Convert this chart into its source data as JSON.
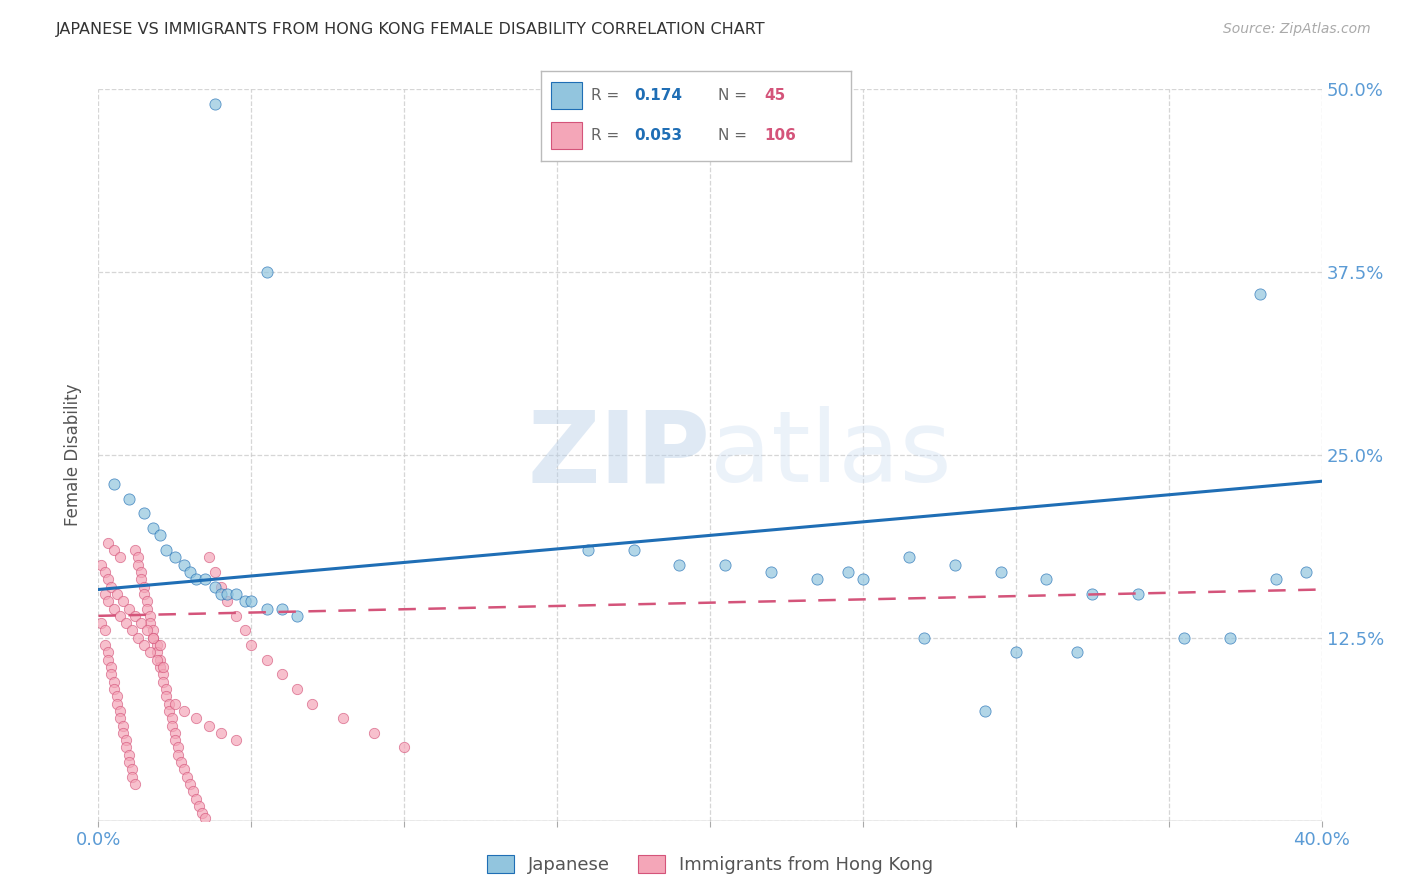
{
  "title": "JAPANESE VS IMMIGRANTS FROM HONG KONG FEMALE DISABILITY CORRELATION CHART",
  "source": "Source: ZipAtlas.com",
  "ylabel": "Female Disability",
  "watermark": "ZIPatlas",
  "xlim": [
    0.0,
    0.4
  ],
  "ylim": [
    0.0,
    0.5
  ],
  "xticks": [
    0.0,
    0.05,
    0.1,
    0.15,
    0.2,
    0.25,
    0.3,
    0.35,
    0.4
  ],
  "yticks": [
    0.0,
    0.125,
    0.25,
    0.375,
    0.5
  ],
  "yticklabels_right": [
    "",
    "12.5%",
    "25.0%",
    "37.5%",
    "50.0%"
  ],
  "legend_label1": "Japanese",
  "legend_label2": "Immigrants from Hong Kong",
  "R1": "0.174",
  "N1": "45",
  "R2": "0.053",
  "N2": "106",
  "color_blue": "#92c5de",
  "color_pink": "#f4a6b8",
  "line_color_blue": "#1f6eb5",
  "line_color_pink": "#d4547a",
  "background_color": "#ffffff",
  "grid_color": "#cccccc",
  "blue_trend_start": 0.158,
  "blue_trend_end": 0.232,
  "pink_trend_start": 0.14,
  "pink_trend_end": 0.158,
  "japanese_x": [
    0.038,
    0.055,
    0.005,
    0.01,
    0.015,
    0.018,
    0.02,
    0.022,
    0.025,
    0.028,
    0.03,
    0.032,
    0.035,
    0.038,
    0.04,
    0.042,
    0.045,
    0.048,
    0.05,
    0.055,
    0.06,
    0.065,
    0.16,
    0.175,
    0.19,
    0.205,
    0.22,
    0.235,
    0.25,
    0.265,
    0.28,
    0.295,
    0.31,
    0.325,
    0.34,
    0.355,
    0.37,
    0.385,
    0.32,
    0.3,
    0.27,
    0.245,
    0.29,
    0.395,
    0.38
  ],
  "japanese_y": [
    0.49,
    0.375,
    0.23,
    0.22,
    0.21,
    0.2,
    0.195,
    0.185,
    0.18,
    0.175,
    0.17,
    0.165,
    0.165,
    0.16,
    0.155,
    0.155,
    0.155,
    0.15,
    0.15,
    0.145,
    0.145,
    0.14,
    0.185,
    0.185,
    0.175,
    0.175,
    0.17,
    0.165,
    0.165,
    0.18,
    0.175,
    0.17,
    0.165,
    0.155,
    0.155,
    0.125,
    0.125,
    0.165,
    0.115,
    0.115,
    0.125,
    0.17,
    0.075,
    0.17,
    0.36
  ],
  "hk_x": [
    0.001,
    0.002,
    0.002,
    0.003,
    0.003,
    0.004,
    0.004,
    0.005,
    0.005,
    0.006,
    0.006,
    0.007,
    0.007,
    0.008,
    0.008,
    0.009,
    0.009,
    0.01,
    0.01,
    0.011,
    0.011,
    0.012,
    0.012,
    0.013,
    0.013,
    0.014,
    0.014,
    0.015,
    0.015,
    0.016,
    0.016,
    0.017,
    0.017,
    0.018,
    0.018,
    0.019,
    0.019,
    0.02,
    0.02,
    0.021,
    0.021,
    0.022,
    0.022,
    0.023,
    0.023,
    0.024,
    0.024,
    0.025,
    0.025,
    0.026,
    0.026,
    0.027,
    0.028,
    0.029,
    0.03,
    0.031,
    0.032,
    0.033,
    0.034,
    0.035,
    0.036,
    0.038,
    0.04,
    0.042,
    0.045,
    0.048,
    0.05,
    0.055,
    0.06,
    0.065,
    0.07,
    0.08,
    0.09,
    0.1,
    0.002,
    0.003,
    0.005,
    0.007,
    0.009,
    0.011,
    0.013,
    0.015,
    0.017,
    0.019,
    0.021,
    0.003,
    0.005,
    0.007,
    0.001,
    0.002,
    0.003,
    0.004,
    0.006,
    0.008,
    0.01,
    0.012,
    0.014,
    0.016,
    0.018,
    0.02,
    0.025,
    0.028,
    0.032,
    0.036,
    0.04,
    0.045
  ],
  "hk_y": [
    0.135,
    0.13,
    0.12,
    0.115,
    0.11,
    0.105,
    0.1,
    0.095,
    0.09,
    0.085,
    0.08,
    0.075,
    0.07,
    0.065,
    0.06,
    0.055,
    0.05,
    0.045,
    0.04,
    0.035,
    0.03,
    0.025,
    0.185,
    0.18,
    0.175,
    0.17,
    0.165,
    0.16,
    0.155,
    0.15,
    0.145,
    0.14,
    0.135,
    0.13,
    0.125,
    0.12,
    0.115,
    0.11,
    0.105,
    0.1,
    0.095,
    0.09,
    0.085,
    0.08,
    0.075,
    0.07,
    0.065,
    0.06,
    0.055,
    0.05,
    0.045,
    0.04,
    0.035,
    0.03,
    0.025,
    0.02,
    0.015,
    0.01,
    0.005,
    0.002,
    0.18,
    0.17,
    0.16,
    0.15,
    0.14,
    0.13,
    0.12,
    0.11,
    0.1,
    0.09,
    0.08,
    0.07,
    0.06,
    0.05,
    0.155,
    0.15,
    0.145,
    0.14,
    0.135,
    0.13,
    0.125,
    0.12,
    0.115,
    0.11,
    0.105,
    0.19,
    0.185,
    0.18,
    0.175,
    0.17,
    0.165,
    0.16,
    0.155,
    0.15,
    0.145,
    0.14,
    0.135,
    0.13,
    0.125,
    0.12,
    0.08,
    0.075,
    0.07,
    0.065,
    0.06,
    0.055
  ]
}
